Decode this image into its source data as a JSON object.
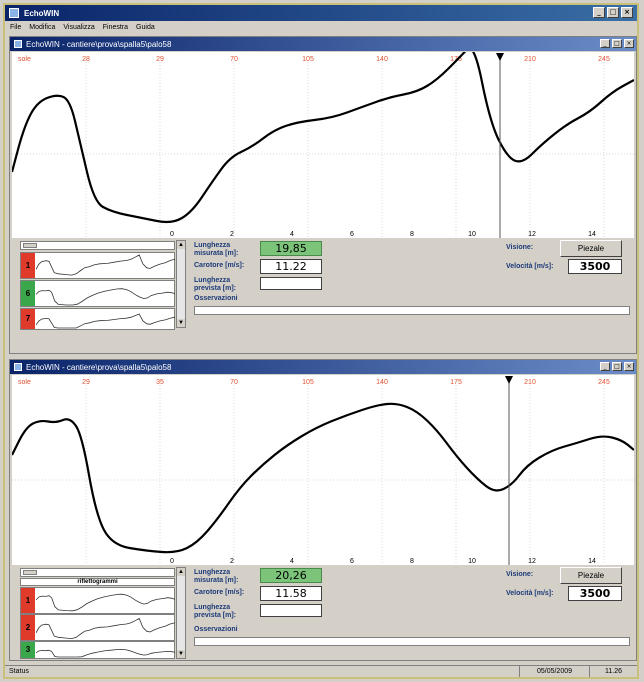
{
  "app": {
    "title": "EchoWIN",
    "menu": [
      "File",
      "Modifica",
      "Visualizza",
      "Finestra",
      "Guida"
    ]
  },
  "panes": [
    {
      "title": "EchoWIN - cantiere\\prova\\spalla5\\palo58",
      "top_label": "sole",
      "top_ticks": [
        "28",
        "29",
        "70",
        "105",
        "140",
        "175",
        "210",
        "245"
      ],
      "bottom_ticks": [
        "0",
        "2",
        "4",
        "6",
        "8",
        "10",
        "12",
        "14"
      ],
      "len_label": "Lunghezza misurata [m]:",
      "len_value": "19,85",
      "cutoff_label": "Carotore [m/s]:",
      "cutoff_value": "11.22",
      "planned_label": "Lunghezza prevista [m]:",
      "planned_value": "",
      "obs_label": "Osservazioni",
      "view_label": "Visione:",
      "view_button": "Piezale",
      "speed_label": "Velocità [m/s]:",
      "speed_value": "3500",
      "strips": [
        {
          "tag": "1",
          "color": "#e03a2a"
        },
        {
          "tag": "6",
          "color": "#3aa84a"
        },
        {
          "tag": "7",
          "color": "#e03a2a"
        }
      ],
      "mini_title": ""
    },
    {
      "title": "EchoWIN - cantiere\\prova\\spalla5\\palo58",
      "top_label": "sole",
      "top_ticks": [
        "29",
        "35",
        "70",
        "105",
        "140",
        "175",
        "210",
        "245"
      ],
      "bottom_ticks": [
        "0",
        "2",
        "4",
        "6",
        "8",
        "10",
        "12",
        "14"
      ],
      "len_label": "Lunghezza misurata [m]:",
      "len_value": "20,26",
      "cutoff_label": "Carotore [m/s]:",
      "cutoff_value": "11.58",
      "planned_label": "Lunghezza prevista [m]:",
      "planned_value": "",
      "obs_label": "Osservazioni",
      "view_label": "Visione:",
      "view_button": "Piezale",
      "speed_label": "Velocità [m/s]:",
      "speed_value": "3500",
      "strips": [
        {
          "tag": "1",
          "color": "#e03a2a"
        },
        {
          "tag": "2",
          "color": "#e03a2a"
        },
        {
          "tag": "3",
          "color": "#3aa84a"
        }
      ],
      "mini_title": "riflettogrammi"
    }
  ],
  "status": {
    "left": "Status",
    "date": "05/05/2009",
    "time": "11.26"
  }
}
